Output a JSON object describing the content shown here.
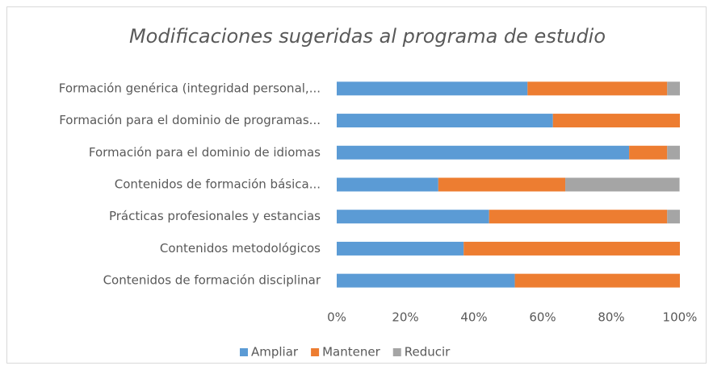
{
  "chart_data": {
    "type": "stacked_barh",
    "title": "Modificaciones sugeridas al programa de estudio",
    "categories": [
      "Formación genérica (integridad personal,...",
      "Formación para el dominio de programas...",
      "Formación para el dominio de idiomas",
      "Contenidos de formación básica...",
      "Prácticas profesionales y estancias",
      "Contenidos metodológicos",
      "Contenidos de formación disciplinar"
    ],
    "series": [
      {
        "name": "Ampliar",
        "color": "#5b9bd5",
        "values": [
          55.6,
          63.0,
          85.2,
          29.6,
          44.4,
          37.0,
          51.9
        ]
      },
      {
        "name": "Mantener",
        "color": "#ed7d31",
        "values": [
          40.7,
          37.0,
          11.1,
          37.0,
          51.9,
          63.0,
          48.1
        ]
      },
      {
        "name": "Reducir",
        "color": "#a5a5a5",
        "values": [
          3.7,
          0,
          3.7,
          33.3,
          3.7,
          0,
          0
        ]
      }
    ],
    "xlim": [
      0,
      100
    ],
    "xticks": [
      {
        "value": 0,
        "label": "0%"
      },
      {
        "value": 20,
        "label": "20%"
      },
      {
        "value": 40,
        "label": "40%"
      },
      {
        "value": 60,
        "label": "60%"
      },
      {
        "value": 80,
        "label": "80%"
      },
      {
        "value": 100,
        "label": "100%"
      }
    ],
    "grid": false,
    "legend": "bottom"
  }
}
